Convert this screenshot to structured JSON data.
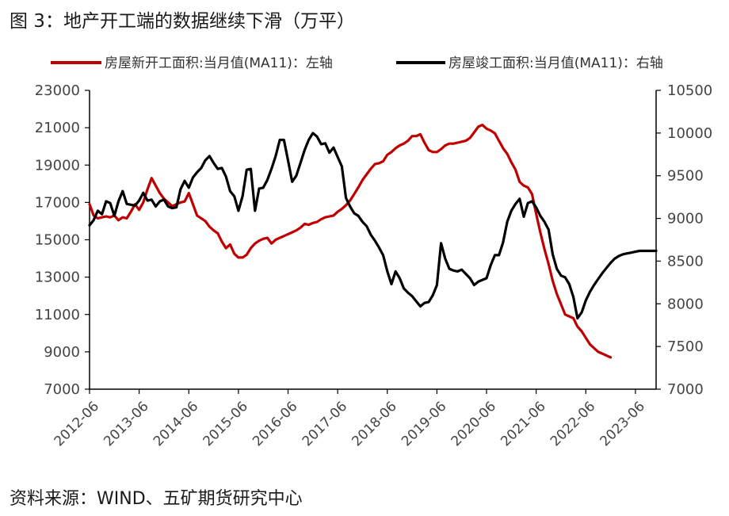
{
  "title": "图 3：地产开工端的数据继续下滑（万平）",
  "source": "资料来源：WIND、五矿期货研究中心",
  "chart_data": {
    "type": "line",
    "legend_position": "top",
    "grid": false,
    "x_ticks": [
      "2012-06",
      "2013-06",
      "2014-06",
      "2015-06",
      "2016-06",
      "2017-06",
      "2018-06",
      "2019-06",
      "2020-06",
      "2021-06",
      "2022-06",
      "2023-06"
    ],
    "x_range": [
      "2012-06",
      "2023-11"
    ],
    "y_left": {
      "range": [
        7000,
        23000
      ],
      "ticks": [
        7000,
        9000,
        11000,
        13000,
        15000,
        17000,
        19000,
        21000,
        23000
      ]
    },
    "y_right": {
      "range": [
        7000,
        10500
      ],
      "ticks": [
        7000,
        7500,
        8000,
        8500,
        9000,
        9500,
        10000,
        10500
      ]
    },
    "series": [
      {
        "name": "房屋新开工面积:当月值(MA11)：左轴",
        "axis": "left",
        "color": "#c00000",
        "data": [
          [
            "2012-06",
            16900
          ],
          [
            "2012-07",
            16300
          ],
          [
            "2012-08",
            16150
          ],
          [
            "2012-09",
            16200
          ],
          [
            "2012-10",
            16250
          ],
          [
            "2012-11",
            16200
          ],
          [
            "2012-12",
            16300
          ],
          [
            "2013-01",
            16050
          ],
          [
            "2013-02",
            16200
          ],
          [
            "2013-03",
            16150
          ],
          [
            "2013-04",
            16500
          ],
          [
            "2013-05",
            16900
          ],
          [
            "2013-06",
            16600
          ],
          [
            "2013-07",
            17000
          ],
          [
            "2013-08",
            17700
          ],
          [
            "2013-09",
            18300
          ],
          [
            "2013-10",
            17900
          ],
          [
            "2013-11",
            17500
          ],
          [
            "2013-12",
            17200
          ],
          [
            "2014-01",
            17000
          ],
          [
            "2014-02",
            16800
          ],
          [
            "2014-03",
            16900
          ],
          [
            "2014-04",
            17000
          ],
          [
            "2014-05",
            17050
          ],
          [
            "2014-06",
            17500
          ],
          [
            "2014-07",
            16900
          ],
          [
            "2014-08",
            16300
          ],
          [
            "2014-09",
            16150
          ],
          [
            "2014-10",
            16000
          ],
          [
            "2014-11",
            15700
          ],
          [
            "2014-12",
            15500
          ],
          [
            "2015-01",
            15350
          ],
          [
            "2015-02",
            14900
          ],
          [
            "2015-03",
            14550
          ],
          [
            "2015-04",
            14750
          ],
          [
            "2015-05",
            14250
          ],
          [
            "2015-06",
            14050
          ],
          [
            "2015-07",
            14050
          ],
          [
            "2015-08",
            14200
          ],
          [
            "2015-09",
            14550
          ],
          [
            "2015-10",
            14800
          ],
          [
            "2015-11",
            14950
          ],
          [
            "2015-12",
            15050
          ],
          [
            "2016-01",
            15100
          ],
          [
            "2016-02",
            14800
          ],
          [
            "2016-03",
            15000
          ],
          [
            "2016-04",
            15100
          ],
          [
            "2016-05",
            15200
          ],
          [
            "2016-06",
            15300
          ],
          [
            "2016-07",
            15400
          ],
          [
            "2016-08",
            15500
          ],
          [
            "2016-09",
            15650
          ],
          [
            "2016-10",
            15850
          ],
          [
            "2016-11",
            15800
          ],
          [
            "2016-12",
            15900
          ],
          [
            "2017-01",
            15950
          ],
          [
            "2017-02",
            16100
          ],
          [
            "2017-03",
            16200
          ],
          [
            "2017-04",
            16250
          ],
          [
            "2017-05",
            16300
          ],
          [
            "2017-06",
            16500
          ],
          [
            "2017-07",
            16650
          ],
          [
            "2017-08",
            16850
          ],
          [
            "2017-09",
            17100
          ],
          [
            "2017-10",
            17450
          ],
          [
            "2017-11",
            17800
          ],
          [
            "2017-12",
            18200
          ],
          [
            "2018-01",
            18500
          ],
          [
            "2018-02",
            18800
          ],
          [
            "2018-03",
            19050
          ],
          [
            "2018-04",
            19100
          ],
          [
            "2018-05",
            19200
          ],
          [
            "2018-06",
            19550
          ],
          [
            "2018-07",
            19700
          ],
          [
            "2018-08",
            19900
          ],
          [
            "2018-09",
            20050
          ],
          [
            "2018-10",
            20150
          ],
          [
            "2018-11",
            20300
          ],
          [
            "2018-12",
            20550
          ],
          [
            "2019-01",
            20550
          ],
          [
            "2019-02",
            20650
          ],
          [
            "2019-03",
            20200
          ],
          [
            "2019-04",
            19800
          ],
          [
            "2019-05",
            19700
          ],
          [
            "2019-06",
            19700
          ],
          [
            "2019-07",
            19850
          ],
          [
            "2019-08",
            20050
          ],
          [
            "2019-09",
            20150
          ],
          [
            "2019-10",
            20150
          ],
          [
            "2019-11",
            20200
          ],
          [
            "2019-12",
            20250
          ],
          [
            "2020-01",
            20300
          ],
          [
            "2020-02",
            20450
          ],
          [
            "2020-03",
            20750
          ],
          [
            "2020-04",
            21050
          ],
          [
            "2020-05",
            21150
          ],
          [
            "2020-06",
            20950
          ],
          [
            "2020-07",
            20850
          ],
          [
            "2020-08",
            20700
          ],
          [
            "2020-09",
            20300
          ],
          [
            "2020-10",
            19900
          ],
          [
            "2020-11",
            19600
          ],
          [
            "2020-12",
            19150
          ],
          [
            "2021-01",
            18750
          ],
          [
            "2021-02",
            18100
          ],
          [
            "2021-03",
            17900
          ],
          [
            "2021-04",
            17800
          ],
          [
            "2021-05",
            17450
          ],
          [
            "2021-06",
            16400
          ],
          [
            "2021-07",
            15400
          ],
          [
            "2021-08",
            14500
          ],
          [
            "2021-09",
            13700
          ],
          [
            "2021-10",
            12800
          ],
          [
            "2021-11",
            12100
          ],
          [
            "2021-12",
            11550
          ],
          [
            "2022-01",
            11000
          ],
          [
            "2022-02",
            10900
          ],
          [
            "2022-03",
            10800
          ],
          [
            "2022-04",
            10350
          ],
          [
            "2022-05",
            10100
          ],
          [
            "2022-06",
            9750
          ],
          [
            "2022-07",
            9400
          ],
          [
            "2022-08",
            9200
          ],
          [
            "2022-09",
            9000
          ],
          [
            "2022-10",
            8900
          ],
          [
            "2022-11",
            8800
          ],
          [
            "2022-12",
            8700
          ]
        ]
      },
      {
        "name": "房屋竣工面积:当月值(MA11)：右轴",
        "axis": "right",
        "color": "#000000",
        "data": [
          [
            "2012-06",
            8920
          ],
          [
            "2012-07",
            8980
          ],
          [
            "2012-08",
            9090
          ],
          [
            "2012-09",
            9050
          ],
          [
            "2012-10",
            9200
          ],
          [
            "2012-11",
            9180
          ],
          [
            "2012-12",
            9030
          ],
          [
            "2013-01",
            9200
          ],
          [
            "2013-02",
            9320
          ],
          [
            "2013-03",
            9170
          ],
          [
            "2013-04",
            9160
          ],
          [
            "2013-05",
            9150
          ],
          [
            "2013-06",
            9210
          ],
          [
            "2013-07",
            9300
          ],
          [
            "2013-08",
            9210
          ],
          [
            "2013-09",
            9220
          ],
          [
            "2013-10",
            9140
          ],
          [
            "2013-11",
            9200
          ],
          [
            "2013-12",
            9220
          ],
          [
            "2014-01",
            9140
          ],
          [
            "2014-02",
            9120
          ],
          [
            "2014-03",
            9130
          ],
          [
            "2014-04",
            9340
          ],
          [
            "2014-05",
            9440
          ],
          [
            "2014-06",
            9360
          ],
          [
            "2014-07",
            9480
          ],
          [
            "2014-08",
            9540
          ],
          [
            "2014-09",
            9590
          ],
          [
            "2014-10",
            9680
          ],
          [
            "2014-11",
            9730
          ],
          [
            "2014-12",
            9650
          ],
          [
            "2015-01",
            9580
          ],
          [
            "2015-02",
            9590
          ],
          [
            "2015-03",
            9490
          ],
          [
            "2015-04",
            9320
          ],
          [
            "2015-05",
            9260
          ],
          [
            "2015-06",
            9090
          ],
          [
            "2015-07",
            9260
          ],
          [
            "2015-08",
            9570
          ],
          [
            "2015-09",
            9580
          ],
          [
            "2015-10",
            9090
          ],
          [
            "2015-11",
            9350
          ],
          [
            "2015-12",
            9360
          ],
          [
            "2016-01",
            9450
          ],
          [
            "2016-02",
            9580
          ],
          [
            "2016-03",
            9730
          ],
          [
            "2016-04",
            9920
          ],
          [
            "2016-05",
            9920
          ],
          [
            "2016-06",
            9680
          ],
          [
            "2016-07",
            9430
          ],
          [
            "2016-08",
            9500
          ],
          [
            "2016-09",
            9650
          ],
          [
            "2016-10",
            9800
          ],
          [
            "2016-11",
            9920
          ],
          [
            "2016-12",
            10000
          ],
          [
            "2017-01",
            9960
          ],
          [
            "2017-02",
            9870
          ],
          [
            "2017-03",
            9880
          ],
          [
            "2017-04",
            9770
          ],
          [
            "2017-05",
            9830
          ],
          [
            "2017-06",
            9720
          ],
          [
            "2017-07",
            9610
          ],
          [
            "2017-08",
            9240
          ],
          [
            "2017-09",
            9140
          ],
          [
            "2017-10",
            9060
          ],
          [
            "2017-11",
            9030
          ],
          [
            "2017-12",
            8960
          ],
          [
            "2018-01",
            8910
          ],
          [
            "2018-02",
            8810
          ],
          [
            "2018-03",
            8740
          ],
          [
            "2018-04",
            8660
          ],
          [
            "2018-05",
            8570
          ],
          [
            "2018-06",
            8380
          ],
          [
            "2018-07",
            8230
          ],
          [
            "2018-08",
            8380
          ],
          [
            "2018-09",
            8300
          ],
          [
            "2018-10",
            8180
          ],
          [
            "2018-11",
            8130
          ],
          [
            "2018-12",
            8090
          ],
          [
            "2019-01",
            8030
          ],
          [
            "2019-02",
            7970
          ],
          [
            "2019-03",
            8010
          ],
          [
            "2019-04",
            8020
          ],
          [
            "2019-05",
            8100
          ],
          [
            "2019-06",
            8220
          ],
          [
            "2019-07",
            8710
          ],
          [
            "2019-08",
            8530
          ],
          [
            "2019-09",
            8410
          ],
          [
            "2019-10",
            8390
          ],
          [
            "2019-11",
            8380
          ],
          [
            "2019-12",
            8400
          ],
          [
            "2020-01",
            8350
          ],
          [
            "2020-02",
            8300
          ],
          [
            "2020-03",
            8220
          ],
          [
            "2020-04",
            8260
          ],
          [
            "2020-05",
            8280
          ],
          [
            "2020-06",
            8300
          ],
          [
            "2020-07",
            8450
          ],
          [
            "2020-08",
            8570
          ],
          [
            "2020-09",
            8570
          ],
          [
            "2020-10",
            8720
          ],
          [
            "2020-11",
            8960
          ],
          [
            "2020-12",
            9090
          ],
          [
            "2021-01",
            9170
          ],
          [
            "2021-02",
            9230
          ],
          [
            "2021-03",
            9020
          ],
          [
            "2021-04",
            9180
          ],
          [
            "2021-05",
            9200
          ],
          [
            "2021-06",
            9130
          ],
          [
            "2021-07",
            9030
          ],
          [
            "2021-08",
            8960
          ],
          [
            "2021-09",
            8870
          ],
          [
            "2021-10",
            8580
          ],
          [
            "2021-11",
            8410
          ],
          [
            "2021-12",
            8330
          ],
          [
            "2022-01",
            8310
          ],
          [
            "2022-02",
            8230
          ],
          [
            "2022-03",
            8080
          ],
          [
            "2022-04",
            7830
          ],
          [
            "2022-05",
            7900
          ],
          [
            "2022-06",
            8040
          ],
          [
            "2022-07",
            8140
          ],
          [
            "2022-08",
            8220
          ],
          [
            "2022-09",
            8290
          ],
          [
            "2022-10",
            8360
          ],
          [
            "2022-11",
            8420
          ],
          [
            "2022-12",
            8480
          ],
          [
            "2023-01",
            8530
          ],
          [
            "2023-02",
            8560
          ],
          [
            "2023-03",
            8580
          ],
          [
            "2023-04",
            8590
          ],
          [
            "2023-05",
            8600
          ],
          [
            "2023-06",
            8610
          ],
          [
            "2023-07",
            8620
          ],
          [
            "2023-08",
            8620
          ],
          [
            "2023-09",
            8620
          ],
          [
            "2023-10",
            8620
          ],
          [
            "2023-11",
            8620
          ]
        ]
      }
    ]
  }
}
